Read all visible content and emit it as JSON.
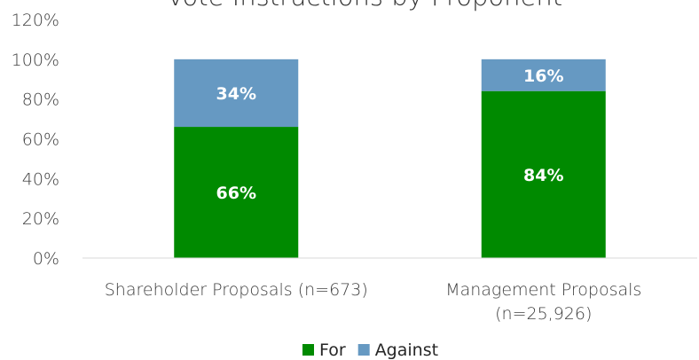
{
  "chart_data": {
    "type": "bar",
    "stacked": true,
    "title": "Vote Instructions by Proponent",
    "categories": [
      [
        "Shareholder Proposals (n=673)"
      ],
      [
        "Management Proposals",
        "(n=25,926)"
      ]
    ],
    "series": [
      {
        "name": "For",
        "values": [
          66,
          84
        ],
        "labels": [
          "66%",
          "84%"
        ],
        "color": "#008A00"
      },
      {
        "name": "Against",
        "values": [
          34,
          16
        ],
        "labels": [
          "34%",
          "16%"
        ],
        "color": "#6699C2"
      }
    ],
    "ylim": [
      0,
      120
    ],
    "yticks": [
      0,
      20,
      40,
      60,
      80,
      100,
      120
    ],
    "ytick_labels": [
      "0%",
      "20%",
      "40%",
      "60%",
      "80%",
      "100%",
      "120%"
    ],
    "grid": false,
    "legend_position": "bottom"
  }
}
